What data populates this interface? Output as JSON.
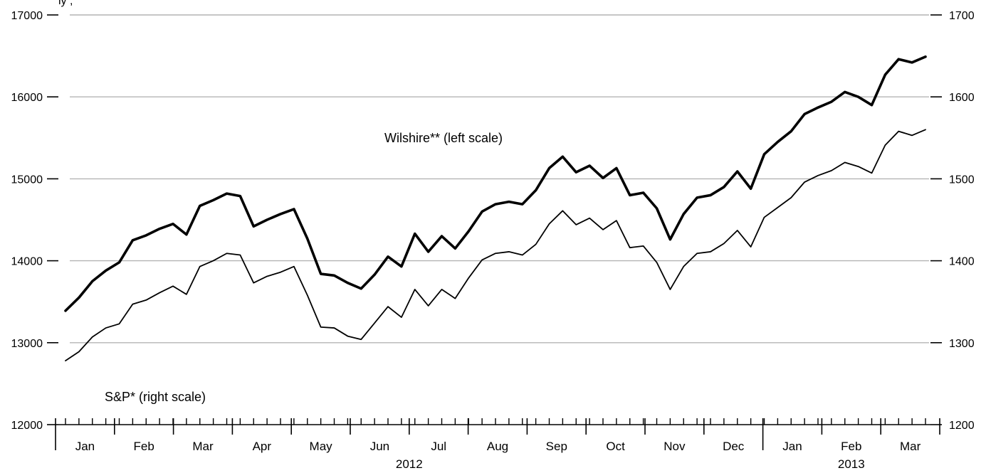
{
  "chart_data": {
    "type": "line",
    "top_label_partial": "ly ,",
    "annotations": {
      "wilshire": "Wilshire** (left scale)",
      "sp": "S&P* (right scale)"
    },
    "left_axis": {
      "ylim": [
        12000,
        17000
      ],
      "ticks": [
        "12000",
        "13000",
        "14000",
        "15000",
        "16000",
        "17000"
      ]
    },
    "right_axis": {
      "ylim": [
        1200,
        1700
      ],
      "ticks": [
        "1200",
        "1300",
        "1400",
        "1500",
        "1600",
        "1700"
      ]
    },
    "grid": true,
    "months": [
      "Jan",
      "Feb",
      "Mar",
      "Apr",
      "May",
      "Jun",
      "Jul",
      "Aug",
      "Sep",
      "Oct",
      "Nov",
      "Dec",
      "Jan",
      "Feb",
      "Mar"
    ],
    "years": [
      "2012",
      "2013"
    ],
    "series": [
      {
        "name": "Wilshire**",
        "axis": "left",
        "values": [
          13390,
          13550,
          13750,
          13880,
          13980,
          14250,
          14310,
          14390,
          14450,
          14320,
          14670,
          14740,
          14820,
          14790,
          14420,
          14500,
          14570,
          14630,
          14270,
          13840,
          13820,
          13730,
          13660,
          13830,
          14050,
          13930,
          14330,
          14110,
          14300,
          14150,
          14360,
          14600,
          14690,
          14720,
          14690,
          14860,
          15130,
          15270,
          15080,
          15160,
          15010,
          15130,
          14800,
          14830,
          14640,
          14260,
          14570,
          14770,
          14800,
          14900,
          15090,
          14880,
          15300,
          15450,
          15580,
          15790,
          15870,
          15940,
          16060,
          16000,
          15900,
          16270,
          16460,
          16420,
          16490
        ]
      },
      {
        "name": "S&P*",
        "axis": "right",
        "values": [
          1278,
          1289,
          1307,
          1318,
          1323,
          1347,
          1352,
          1361,
          1369,
          1359,
          1393,
          1400,
          1409,
          1407,
          1373,
          1381,
          1386,
          1393,
          1358,
          1319,
          1318,
          1308,
          1304,
          1324,
          1344,
          1331,
          1365,
          1345,
          1365,
          1354,
          1379,
          1401,
          1409,
          1411,
          1407,
          1420,
          1445,
          1461,
          1444,
          1452,
          1438,
          1449,
          1416,
          1418,
          1398,
          1365,
          1393,
          1409,
          1411,
          1421,
          1437,
          1417,
          1453,
          1465,
          1477,
          1496,
          1504,
          1510,
          1520,
          1515,
          1507,
          1541,
          1558,
          1553,
          1560
        ]
      }
    ]
  }
}
